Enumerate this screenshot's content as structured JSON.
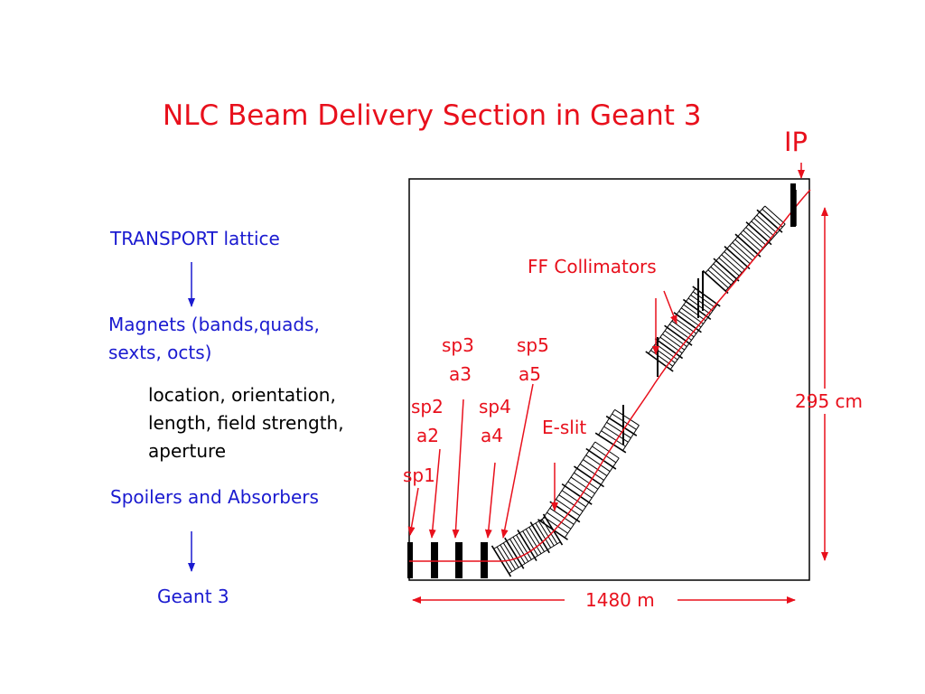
{
  "slide": {
    "title": "NLC Beam Delivery Section in Geant 3",
    "ip_label": "IP",
    "flow": {
      "transport": "TRANSPORT lattice",
      "magnets": "Magnets (bands,quads,\nsexts, octs)",
      "details": "location, orientation,\nlength, field strength,\naperture",
      "spoilers": "Spoilers and Absorbers",
      "geant": "Geant 3"
    },
    "labels": {
      "ff_collimators": "FF Collimators",
      "e_slit": "E-slit",
      "sp1": "sp1",
      "sp2": "sp2",
      "a2": "a2",
      "sp3": "sp3",
      "a3": "a3",
      "sp4": "sp4",
      "a4": "a4",
      "sp5": "sp5",
      "a5": "a5"
    },
    "dimensions": {
      "vertical": "295 cm",
      "horizontal": "1480 m"
    },
    "colors": {
      "annotation": "#e8101c",
      "flow_text": "#1a1ad0",
      "body_text": "#000000"
    }
  }
}
